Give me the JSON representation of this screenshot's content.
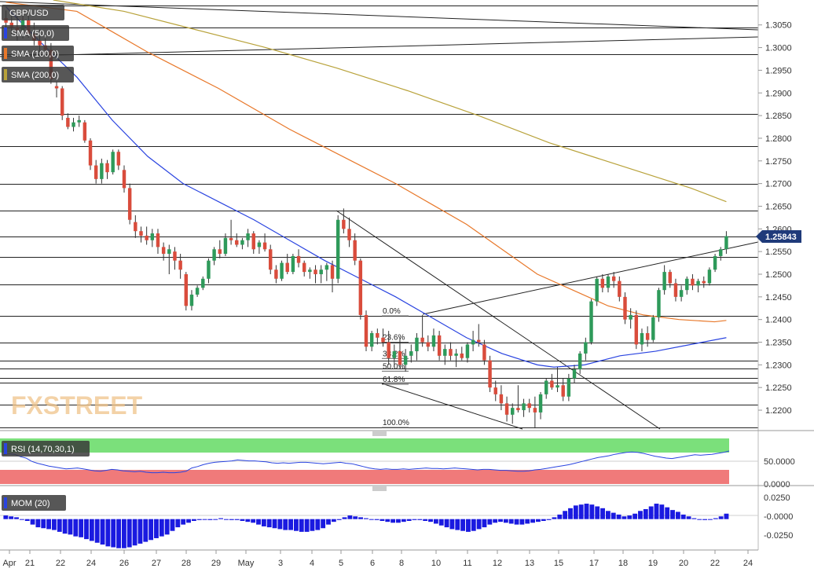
{
  "chart_data": {
    "type": "candlestick",
    "symbol": "GBP/USD",
    "last_price": "1.25843",
    "main_panel": {
      "y_range": [
        1.2155,
        1.3105
      ],
      "y_ticks": [
        "1.3050",
        "1.3000",
        "1.2950",
        "1.2900",
        "1.2850",
        "1.2800",
        "1.2750",
        "1.2700",
        "1.2650",
        "1.2600",
        "1.2550",
        "1.2500",
        "1.2450",
        "1.2400",
        "1.2350",
        "1.2300",
        "1.2250",
        "1.2200"
      ],
      "horizontal_levels": [
        1.3092,
        1.3045,
        1.2985,
        1.2853,
        1.2782,
        1.27,
        1.264,
        1.2584,
        1.2538,
        1.2478,
        1.2408,
        1.235,
        1.2309,
        1.2292,
        1.2272,
        1.226,
        1.2212,
        1.2162
      ],
      "indicators": [
        {
          "label": "SMA (50,0)",
          "color": "#2a44e0"
        },
        {
          "label": "SMA (100,0)",
          "color": "#e8782a"
        },
        {
          "label": "SMA (200,0)",
          "color": "#b8a23a"
        }
      ],
      "fibonacci": [
        {
          "label": "0.0%",
          "price": 1.2408
        },
        {
          "label": "23.6%",
          "price": 1.235
        },
        {
          "label": "38.2%",
          "price": 1.2314
        },
        {
          "label": "50.0%",
          "price": 1.2286
        },
        {
          "label": "61.8%",
          "price": 1.2257
        },
        {
          "label": "100.0%",
          "price": 1.2162
        }
      ],
      "watermark": "FXSTREET"
    },
    "rsi_panel": {
      "label": "RSI (14,70,30,1)",
      "y_range": [
        0,
        100
      ],
      "y_ticks": [
        "50.0000",
        "0.0000"
      ],
      "overbought": 70,
      "oversold": 30
    },
    "mom_panel": {
      "label": "MOM (20)",
      "y_range": [
        -0.034,
        0.03
      ],
      "y_ticks": [
        "0.0250",
        "-0.0000",
        "-0.0250"
      ]
    },
    "x_axis": {
      "labels": [
        "Apr",
        "21",
        "22",
        "24",
        "26",
        "27",
        "28",
        "29",
        "May",
        "3",
        "4",
        "5",
        "6",
        "8",
        "10",
        "11",
        "12",
        "13",
        "15",
        "17",
        "18",
        "19",
        "20",
        "22",
        "24"
      ]
    },
    "candles": [
      [
        1.3065,
        1.3082,
        1.304,
        1.3055
      ],
      [
        1.3055,
        1.3075,
        1.303,
        1.3045
      ],
      [
        1.3045,
        1.307,
        1.3015,
        1.3038
      ],
      [
        1.3038,
        1.3072,
        1.302,
        1.306
      ],
      [
        1.306,
        1.3078,
        1.3022,
        1.303
      ],
      [
        1.303,
        1.3055,
        1.3005,
        1.3015
      ],
      [
        1.3015,
        1.304,
        1.299,
        1.3005
      ],
      [
        1.3005,
        1.302,
        1.299,
        1.2995
      ],
      [
        1.2995,
        1.301,
        1.292,
        1.293
      ],
      [
        1.2915,
        1.2925,
        1.289,
        1.291
      ],
      [
        1.291,
        1.2915,
        1.284,
        1.285
      ],
      [
        1.2845,
        1.2855,
        1.282,
        1.2825
      ],
      [
        1.2825,
        1.2845,
        1.2815,
        1.2835
      ],
      [
        1.2835,
        1.285,
        1.2825,
        1.284
      ],
      [
        1.2835,
        1.284,
        1.279,
        1.2795
      ],
      [
        1.2795,
        1.28,
        1.273,
        1.274
      ],
      [
        1.274,
        1.2752,
        1.27,
        1.271
      ],
      [
        1.271,
        1.2755,
        1.27,
        1.2745
      ],
      [
        1.2745,
        1.2752,
        1.271,
        1.2725
      ],
      [
        1.2725,
        1.2775,
        1.272,
        1.277
      ],
      [
        1.277,
        1.2775,
        1.273,
        1.274
      ],
      [
        1.273,
        1.274,
        1.268,
        1.269
      ],
      [
        1.269,
        1.27,
        1.261,
        1.262
      ],
      [
        1.2615,
        1.263,
        1.258,
        1.2595
      ],
      [
        1.2595,
        1.2605,
        1.257,
        1.2585
      ],
      [
        1.2585,
        1.2605,
        1.2565,
        1.2575
      ],
      [
        1.2575,
        1.26,
        1.256,
        1.259
      ],
      [
        1.259,
        1.26,
        1.2545,
        1.256
      ],
      [
        1.256,
        1.257,
        1.253,
        1.2545
      ],
      [
        1.2545,
        1.2565,
        1.25,
        1.2555
      ],
      [
        1.255,
        1.256,
        1.251,
        1.253
      ],
      [
        1.253,
        1.2545,
        1.249,
        1.251
      ],
      [
        1.25,
        1.2505,
        1.242,
        1.243
      ],
      [
        1.243,
        1.2465,
        1.242,
        1.2455
      ],
      [
        1.2455,
        1.2475,
        1.245,
        1.247
      ],
      [
        1.247,
        1.2495,
        1.2465,
        1.249
      ],
      [
        1.249,
        1.2535,
        1.248,
        1.253
      ],
      [
        1.253,
        1.256,
        1.252,
        1.2555
      ],
      [
        1.2555,
        1.2575,
        1.2535,
        1.2545
      ],
      [
        1.2545,
        1.259,
        1.254,
        1.258
      ],
      [
        1.258,
        1.262,
        1.2565,
        1.2575
      ],
      [
        1.2575,
        1.259,
        1.256,
        1.2565
      ],
      [
        1.2565,
        1.258,
        1.2555,
        1.2575
      ],
      [
        1.2575,
        1.26,
        1.256,
        1.259
      ],
      [
        1.259,
        1.2595,
        1.2545,
        1.2555
      ],
      [
        1.256,
        1.2575,
        1.2545,
        1.257
      ],
      [
        1.257,
        1.259,
        1.255,
        1.2555
      ],
      [
        1.2555,
        1.2565,
        1.25,
        1.251
      ],
      [
        1.251,
        1.252,
        1.248,
        1.249
      ],
      [
        1.249,
        1.253,
        1.2485,
        1.2525
      ],
      [
        1.2525,
        1.2545,
        1.25,
        1.2505
      ],
      [
        1.2505,
        1.2545,
        1.25,
        1.254
      ],
      [
        1.254,
        1.2555,
        1.2515,
        1.2525
      ],
      [
        1.2525,
        1.253,
        1.2495,
        1.2505
      ],
      [
        1.2505,
        1.2515,
        1.249,
        1.251
      ],
      [
        1.251,
        1.252,
        1.248,
        1.25
      ],
      [
        1.25,
        1.252,
        1.248,
        1.251
      ],
      [
        1.251,
        1.2525,
        1.2485,
        1.252
      ],
      [
        1.252,
        1.253,
        1.246,
        1.249
      ],
      [
        1.249,
        1.263,
        1.248,
        1.262
      ],
      [
        1.262,
        1.2645,
        1.259,
        1.26
      ],
      [
        1.26,
        1.2625,
        1.256,
        1.2575
      ],
      [
        1.2575,
        1.259,
        1.252,
        1.253
      ],
      [
        1.253,
        1.2535,
        1.24,
        1.241
      ],
      [
        1.241,
        1.242,
        1.233,
        1.234
      ],
      [
        1.234,
        1.2375,
        1.233,
        1.237
      ],
      [
        1.237,
        1.238,
        1.2345,
        1.236
      ],
      [
        1.236,
        1.238,
        1.234,
        1.235
      ],
      [
        1.235,
        1.2375,
        1.23,
        1.2315
      ],
      [
        1.2315,
        1.2345,
        1.2295,
        1.233
      ],
      [
        1.233,
        1.236,
        1.229,
        1.23
      ],
      [
        1.23,
        1.2335,
        1.2285,
        1.232
      ],
      [
        1.232,
        1.2345,
        1.2305,
        1.233
      ],
      [
        1.233,
        1.237,
        1.231,
        1.236
      ],
      [
        1.236,
        1.241,
        1.234,
        1.235
      ],
      [
        1.235,
        1.2365,
        1.233,
        1.234
      ],
      [
        1.234,
        1.238,
        1.233,
        1.2365
      ],
      [
        1.2365,
        1.2375,
        1.231,
        1.232
      ],
      [
        1.232,
        1.2345,
        1.23,
        1.2335
      ],
      [
        1.2335,
        1.235,
        1.231,
        1.232
      ],
      [
        1.232,
        1.2335,
        1.2295,
        1.2325
      ],
      [
        1.2325,
        1.234,
        1.231,
        1.2315
      ],
      [
        1.2315,
        1.235,
        1.2305,
        1.2345
      ],
      [
        1.2345,
        1.2375,
        1.233,
        1.2355
      ],
      [
        1.2355,
        1.239,
        1.234,
        1.235
      ],
      [
        1.2345,
        1.2355,
        1.23,
        1.231
      ],
      [
        1.231,
        1.232,
        1.224,
        1.225
      ],
      [
        1.225,
        1.2265,
        1.222,
        1.2235
      ],
      [
        1.2235,
        1.2255,
        1.22,
        1.2215
      ],
      [
        1.2215,
        1.223,
        1.2175,
        1.219
      ],
      [
        1.219,
        1.2215,
        1.217,
        1.2205
      ],
      [
        1.2205,
        1.2255,
        1.2195,
        1.22
      ],
      [
        1.22,
        1.2225,
        1.2185,
        1.2215
      ],
      [
        1.2215,
        1.2225,
        1.2195,
        1.2205
      ],
      [
        1.2205,
        1.223,
        1.216,
        1.2195
      ],
      [
        1.2195,
        1.224,
        1.218,
        1.2235
      ],
      [
        1.2235,
        1.227,
        1.2225,
        1.2265
      ],
      [
        1.2265,
        1.228,
        1.2245,
        1.225
      ],
      [
        1.225,
        1.2295,
        1.224,
        1.2255
      ],
      [
        1.2255,
        1.227,
        1.222,
        1.223
      ],
      [
        1.223,
        1.228,
        1.222,
        1.227
      ],
      [
        1.227,
        1.23,
        1.226,
        1.229
      ],
      [
        1.229,
        1.233,
        1.228,
        1.2325
      ],
      [
        1.2325,
        1.236,
        1.231,
        1.235
      ],
      [
        1.235,
        1.2445,
        1.2345,
        1.244
      ],
      [
        1.244,
        1.2495,
        1.243,
        1.249
      ],
      [
        1.249,
        1.25,
        1.246,
        1.247
      ],
      [
        1.247,
        1.25,
        1.246,
        1.2495
      ],
      [
        1.2495,
        1.2505,
        1.247,
        1.2485
      ],
      [
        1.2485,
        1.2495,
        1.244,
        1.245
      ],
      [
        1.245,
        1.246,
        1.239,
        1.24
      ],
      [
        1.24,
        1.2425,
        1.238,
        1.241
      ],
      [
        1.241,
        1.242,
        1.2335,
        1.2345
      ],
      [
        1.2345,
        1.238,
        1.233,
        1.237
      ],
      [
        1.237,
        1.2385,
        1.234,
        1.2355
      ],
      [
        1.2355,
        1.241,
        1.235,
        1.2405
      ],
      [
        1.2405,
        1.247,
        1.2395,
        1.2465
      ],
      [
        1.2465,
        1.252,
        1.2455,
        1.2505
      ],
      [
        1.2505,
        1.251,
        1.247,
        1.248
      ],
      [
        1.248,
        1.249,
        1.244,
        1.245
      ],
      [
        1.245,
        1.2475,
        1.244,
        1.2465
      ],
      [
        1.2465,
        1.2495,
        1.2455,
        1.249
      ],
      [
        1.249,
        1.25,
        1.2465,
        1.2475
      ],
      [
        1.2475,
        1.249,
        1.246,
        1.2485
      ],
      [
        1.2485,
        1.2495,
        1.247,
        1.248
      ],
      [
        1.248,
        1.2515,
        1.2475,
        1.251
      ],
      [
        1.251,
        1.2545,
        1.2505,
        1.254
      ],
      [
        1.254,
        1.256,
        1.253,
        1.2555
      ],
      [
        1.2555,
        1.2595,
        1.2545,
        1.2584
      ]
    ],
    "sma50": [
      [
        0,
        1.309
      ],
      [
        15,
        1.301
      ],
      [
        30,
        1.2935
      ],
      [
        45,
        1.284
      ],
      [
        60,
        1.276
      ],
      [
        75,
        1.27
      ],
      [
        90,
        1.266
      ],
      [
        105,
        1.262
      ],
      [
        120,
        1.2575
      ],
      [
        135,
        1.253
      ],
      [
        150,
        1.249
      ],
      [
        165,
        1.245
      ],
      [
        180,
        1.2405
      ],
      [
        195,
        1.236
      ],
      [
        210,
        1.2325
      ],
      [
        225,
        1.23
      ],
      [
        232,
        1.2295
      ],
      [
        245,
        1.23
      ],
      [
        260,
        1.232
      ],
      [
        275,
        1.233
      ],
      [
        290,
        1.2345
      ],
      [
        305,
        1.236
      ]
    ],
    "sma100": [
      [
        0,
        1.31
      ],
      [
        30,
        1.308
      ],
      [
        60,
        1.299
      ],
      [
        90,
        1.291
      ],
      [
        120,
        1.282
      ],
      [
        150,
        1.274
      ],
      [
        165,
        1.27
      ],
      [
        180,
        1.2655
      ],
      [
        195,
        1.261
      ],
      [
        210,
        1.2555
      ],
      [
        225,
        1.25
      ],
      [
        240,
        1.2465
      ],
      [
        255,
        1.243
      ],
      [
        270,
        1.241
      ],
      [
        285,
        1.24
      ],
      [
        300,
        1.2395
      ],
      [
        305,
        1.2398
      ]
    ],
    "sma200": [
      [
        20,
        1.3105
      ],
      [
        50,
        1.308
      ],
      [
        80,
        1.304
      ],
      [
        110,
        1.3
      ],
      [
        140,
        1.2955
      ],
      [
        170,
        1.2905
      ],
      [
        200,
        1.285
      ],
      [
        230,
        1.279
      ],
      [
        260,
        1.274
      ],
      [
        290,
        1.269
      ],
      [
        305,
        1.266
      ]
    ],
    "rsi": [
      62,
      64,
      63,
      58,
      55,
      48,
      44,
      41,
      38,
      36,
      34,
      32,
      33,
      34,
      32,
      30,
      28,
      27,
      29,
      31,
      30,
      28,
      27,
      26,
      27,
      25,
      24,
      24,
      25,
      24,
      24,
      25,
      27,
      34,
      37,
      41,
      44,
      46,
      47,
      48,
      49,
      51,
      50,
      49,
      49,
      48,
      47,
      45,
      44,
      45,
      44,
      45,
      46,
      46,
      45,
      44,
      43,
      44,
      45,
      46,
      44,
      43,
      40,
      37,
      34,
      32,
      31,
      32,
      31,
      31,
      32,
      31,
      32,
      33,
      34,
      33,
      33,
      32,
      33,
      34,
      33,
      32,
      31,
      30,
      31,
      31,
      30,
      29,
      29,
      28,
      27,
      27,
      28,
      30,
      31,
      33,
      35,
      37,
      39,
      41,
      44,
      47,
      50,
      53,
      56,
      58,
      60,
      63,
      65,
      67,
      68,
      67,
      65,
      62,
      59,
      57,
      55,
      54,
      56,
      58,
      60,
      62,
      61,
      62,
      63,
      65,
      67,
      70
    ],
    "mom": [
      0.004,
      0.003,
      0.002,
      0.0,
      -0.002,
      -0.006,
      -0.009,
      -0.01,
      -0.011,
      -0.012,
      -0.014,
      -0.016,
      -0.017,
      -0.019,
      -0.02,
      -0.022,
      -0.024,
      -0.026,
      -0.028,
      -0.03,
      -0.031,
      -0.032,
      -0.032,
      -0.031,
      -0.029,
      -0.027,
      -0.025,
      -0.023,
      -0.021,
      -0.019,
      -0.017,
      -0.013,
      -0.009,
      -0.006,
      -0.004,
      -0.002,
      -0.001,
      0.0,
      -0.001,
      0.0,
      0.001,
      0.0,
      -0.001,
      -0.001,
      -0.002,
      -0.003,
      -0.004,
      -0.006,
      -0.008,
      -0.009,
      -0.01,
      -0.011,
      -0.012,
      -0.012,
      -0.013,
      -0.014,
      -0.014,
      -0.013,
      -0.012,
      -0.01,
      -0.006,
      -0.003,
      -0.001,
      0.002,
      0.004,
      0.003,
      0.002,
      0.001,
      0.0,
      -0.001,
      -0.002,
      -0.003,
      -0.004,
      -0.004,
      -0.003,
      -0.002,
      -0.001,
      -0.001,
      -0.002,
      -0.003,
      -0.005,
      -0.007,
      -0.009,
      -0.011,
      -0.012,
      -0.013,
      -0.014,
      -0.013,
      -0.011,
      -0.009,
      -0.006,
      -0.004,
      -0.003,
      -0.004,
      -0.005,
      -0.006,
      -0.006,
      -0.005,
      -0.004,
      -0.003,
      -0.002,
      -0.001,
      0.002,
      0.005,
      0.009,
      0.012,
      0.015,
      0.016,
      0.017,
      0.016,
      0.014,
      0.012,
      0.009,
      0.007,
      0.005,
      0.003,
      0.004,
      0.006,
      0.009,
      0.011,
      0.014,
      0.017,
      0.016,
      0.013,
      0.01,
      0.008,
      0.005,
      0.003,
      0.001,
      0.0,
      -0.001,
      0.0,
      0.001,
      0.003,
      0.006
    ]
  }
}
